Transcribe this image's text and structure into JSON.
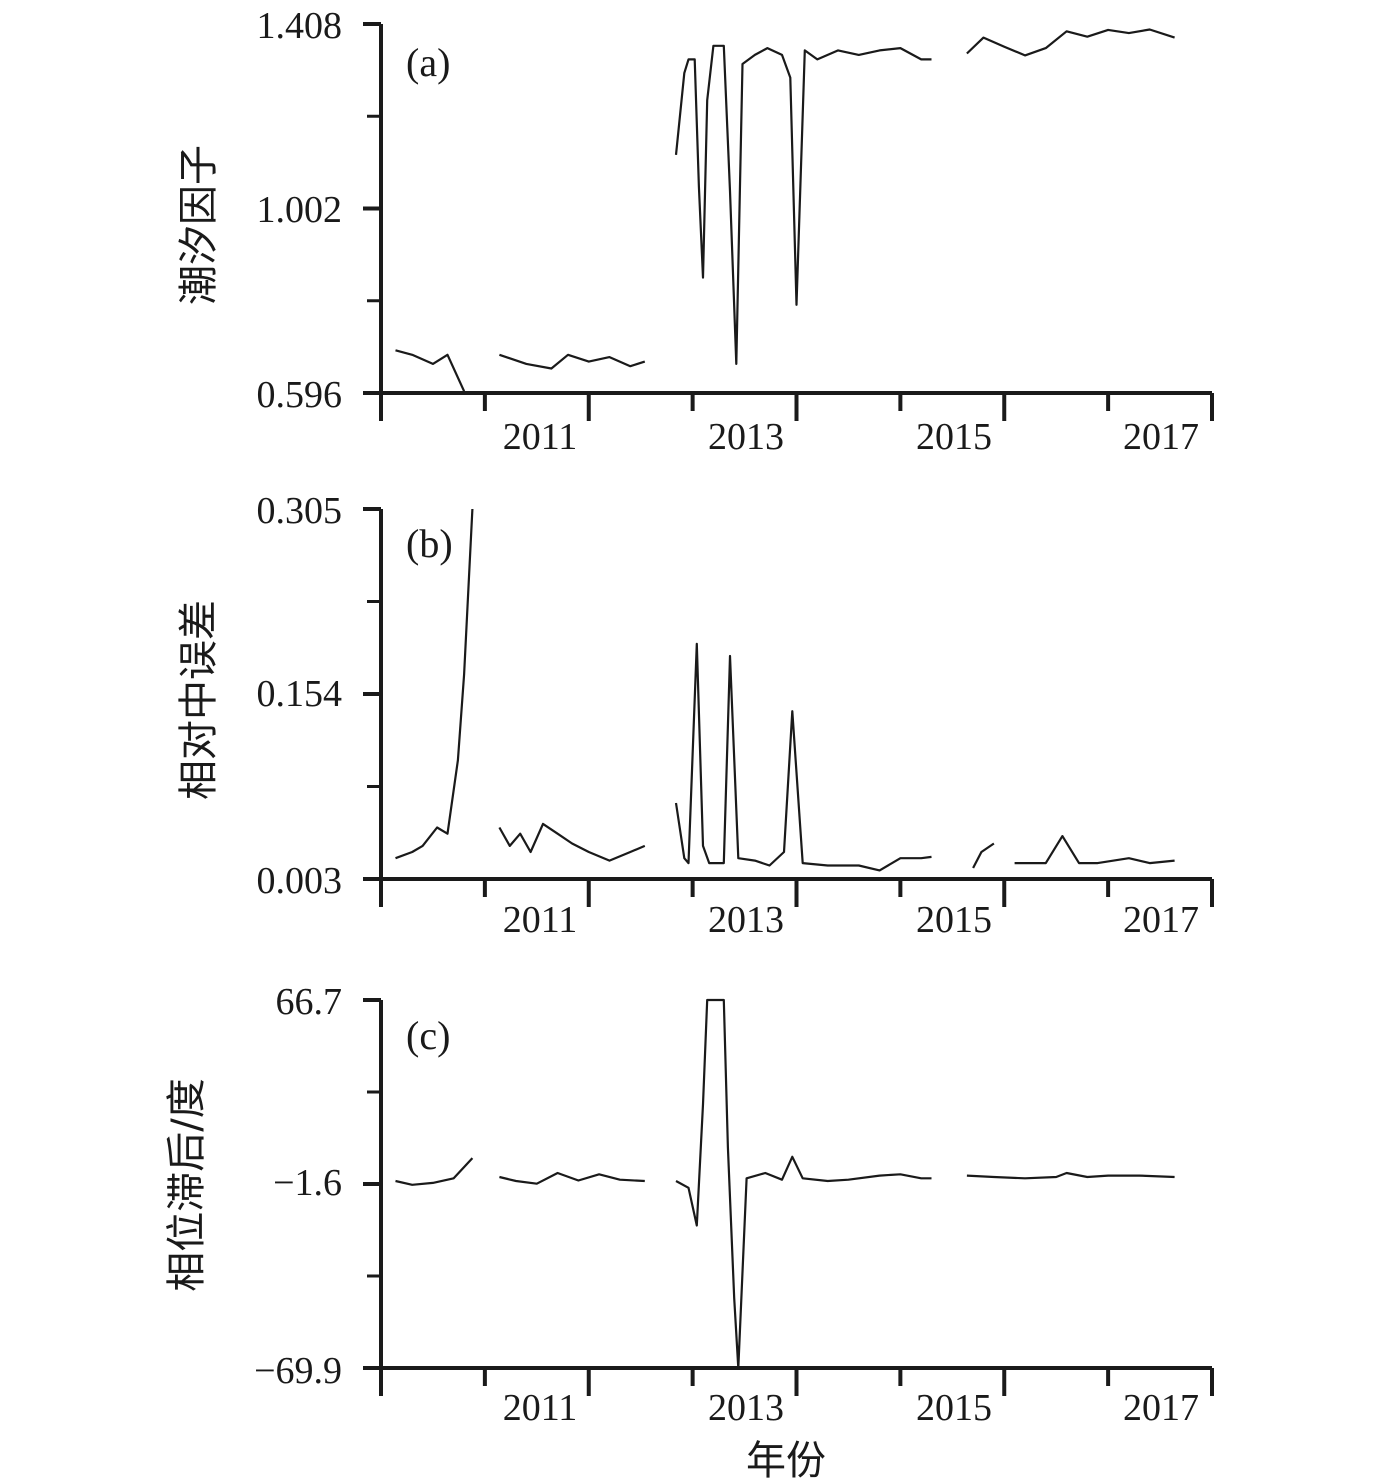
{
  "chart_data": [
    {
      "type": "line",
      "panel_label": "(a)",
      "ylabel": "潮汐因子",
      "ylim": [
        0.596,
        1.408
      ],
      "y_tick_labels": [
        "1.408",
        "1.002",
        "0.596"
      ],
      "x_tick_labels": [
        "2011",
        "2013",
        "2015",
        "2017"
      ],
      "xlim": [
        2010.0,
        2018.0
      ],
      "series": [
        {
          "segments": [
            [
              [
                2010.14,
                0.69
              ],
              [
                2010.3,
                0.68
              ],
              [
                2010.5,
                0.66
              ],
              [
                2010.64,
                0.68
              ],
              [
                2010.8,
                0.6
              ]
            ],
            [
              [
                2011.14,
                0.68
              ],
              [
                2011.4,
                0.66
              ],
              [
                2011.64,
                0.65
              ],
              [
                2011.8,
                0.68
              ],
              [
                2012.0,
                0.665
              ],
              [
                2012.2,
                0.675
              ],
              [
                2012.4,
                0.655
              ],
              [
                2012.54,
                0.665
              ]
            ],
            [
              [
                2012.84,
                1.12
              ],
              [
                2012.92,
                1.3
              ],
              [
                2012.96,
                1.33
              ],
              [
                2013.02,
                1.33
              ],
              [
                2013.06,
                1.05
              ],
              [
                2013.1,
                0.85
              ],
              [
                2013.14,
                1.24
              ],
              [
                2013.2,
                1.36
              ],
              [
                2013.3,
                1.36
              ],
              [
                2013.36,
                1.04
              ],
              [
                2013.42,
                0.66
              ],
              [
                2013.48,
                1.32
              ],
              [
                2013.6,
                1.34
              ],
              [
                2013.72,
                1.355
              ],
              [
                2013.86,
                1.34
              ],
              [
                2013.94,
                1.29
              ],
              [
                2014.0,
                0.79
              ],
              [
                2014.08,
                1.35
              ],
              [
                2014.2,
                1.33
              ],
              [
                2014.4,
                1.35
              ],
              [
                2014.6,
                1.34
              ],
              [
                2014.8,
                1.35
              ],
              [
                2015.0,
                1.355
              ],
              [
                2015.2,
                1.33
              ],
              [
                2015.3,
                1.33
              ]
            ],
            [
              [
                2015.64,
                1.343
              ],
              [
                2015.8,
                1.378
              ],
              [
                2016.0,
                1.358
              ],
              [
                2016.2,
                1.339
              ],
              [
                2016.4,
                1.355
              ],
              [
                2016.6,
                1.392
              ],
              [
                2016.8,
                1.38
              ],
              [
                2017.0,
                1.395
              ],
              [
                2017.2,
                1.388
              ],
              [
                2017.4,
                1.396
              ],
              [
                2017.64,
                1.378
              ]
            ]
          ]
        }
      ]
    },
    {
      "type": "line",
      "panel_label": "(b)",
      "ylabel": "相对中误差",
      "ylim": [
        0.003,
        0.305
      ],
      "y_tick_labels": [
        "0.305",
        "0.154",
        "0.003"
      ],
      "x_tick_labels": [
        "2011",
        "2013",
        "2015",
        "2017"
      ],
      "xlim": [
        2010.0,
        2018.0
      ],
      "series": [
        {
          "segments": [
            [
              [
                2010.14,
                0.02
              ],
              [
                2010.3,
                0.025
              ],
              [
                2010.4,
                0.03
              ],
              [
                2010.54,
                0.045
              ],
              [
                2010.64,
                0.04
              ],
              [
                2010.74,
                0.1
              ],
              [
                2010.8,
                0.17
              ],
              [
                2010.88,
                0.305
              ]
            ],
            [
              [
                2011.14,
                0.045
              ],
              [
                2011.24,
                0.03
              ],
              [
                2011.34,
                0.04
              ],
              [
                2011.44,
                0.025
              ],
              [
                2011.56,
                0.048
              ],
              [
                2011.7,
                0.04
              ],
              [
                2011.84,
                0.032
              ],
              [
                2012.0,
                0.025
              ],
              [
                2012.2,
                0.018
              ],
              [
                2012.4,
                0.025
              ],
              [
                2012.54,
                0.03
              ]
            ],
            [
              [
                2012.84,
                0.065
              ],
              [
                2012.92,
                0.02
              ],
              [
                2012.96,
                0.016
              ],
              [
                2013.04,
                0.195
              ],
              [
                2013.1,
                0.03
              ],
              [
                2013.16,
                0.016
              ],
              [
                2013.3,
                0.016
              ],
              [
                2013.36,
                0.185
              ],
              [
                2013.44,
                0.02
              ],
              [
                2013.6,
                0.018
              ],
              [
                2013.74,
                0.014
              ],
              [
                2013.88,
                0.025
              ],
              [
                2013.96,
                0.14
              ],
              [
                2014.06,
                0.016
              ],
              [
                2014.3,
                0.014
              ],
              [
                2014.6,
                0.014
              ],
              [
                2014.8,
                0.01
              ],
              [
                2015.0,
                0.02
              ],
              [
                2015.2,
                0.02
              ],
              [
                2015.3,
                0.021
              ]
            ],
            [
              [
                2015.7,
                0.012
              ],
              [
                2015.78,
                0.025
              ],
              [
                2015.9,
                0.032
              ]
            ],
            [
              [
                2016.1,
                0.016
              ],
              [
                2016.4,
                0.016
              ],
              [
                2016.56,
                0.038
              ],
              [
                2016.72,
                0.016
              ],
              [
                2016.9,
                0.016
              ],
              [
                2017.2,
                0.02
              ],
              [
                2017.4,
                0.016
              ],
              [
                2017.64,
                0.018
              ]
            ]
          ]
        }
      ]
    },
    {
      "type": "line",
      "panel_label": "(c)",
      "ylabel": "相位滞后/度",
      "ylim": [
        -69.9,
        66.7
      ],
      "y_tick_labels": [
        "66.7",
        "−1.6",
        "−69.9"
      ],
      "x_tick_labels": [
        "2011",
        "2013",
        "2015",
        "2017"
      ],
      "xlim": [
        2010.0,
        2018.0
      ],
      "series": [
        {
          "segments": [
            [
              [
                2010.14,
                -0.5
              ],
              [
                2010.3,
                -1.9
              ],
              [
                2010.5,
                -1.2
              ],
              [
                2010.7,
                0.5
              ],
              [
                2010.88,
                8.0
              ]
            ],
            [
              [
                2011.14,
                1.0
              ],
              [
                2011.3,
                -0.5
              ],
              [
                2011.5,
                -1.5
              ],
              [
                2011.7,
                2.5
              ],
              [
                2011.9,
                -0.3
              ],
              [
                2012.1,
                2.0
              ],
              [
                2012.3,
                0.0
              ],
              [
                2012.54,
                -0.5
              ]
            ],
            [
              [
                2012.84,
                -0.5
              ],
              [
                2012.96,
                -3.0
              ],
              [
                2013.04,
                -17.0
              ],
              [
                2013.1,
                28.0
              ],
              [
                2013.14,
                66.7
              ],
              [
                2013.3,
                66.7
              ],
              [
                2013.34,
                12.0
              ],
              [
                2013.4,
                -44.0
              ],
              [
                2013.44,
                -69.9
              ],
              [
                2013.52,
                0.5
              ],
              [
                2013.7,
                2.5
              ],
              [
                2013.86,
                0.0
              ],
              [
                2013.96,
                8.5
              ],
              [
                2014.06,
                0.5
              ],
              [
                2014.3,
                -0.5
              ],
              [
                2014.5,
                0.0
              ],
              [
                2014.8,
                1.5
              ],
              [
                2015.0,
                2.0
              ],
              [
                2015.2,
                0.5
              ],
              [
                2015.3,
                0.5
              ]
            ],
            [
              [
                2015.64,
                1.5
              ],
              [
                2015.9,
                1.0
              ],
              [
                2016.2,
                0.5
              ],
              [
                2016.5,
                1.0
              ],
              [
                2016.6,
                2.5
              ],
              [
                2016.8,
                1.0
              ],
              [
                2017.0,
                1.5
              ],
              [
                2017.3,
                1.5
              ],
              [
                2017.64,
                1.0
              ]
            ]
          ]
        }
      ]
    }
  ],
  "xlabel": "年份"
}
